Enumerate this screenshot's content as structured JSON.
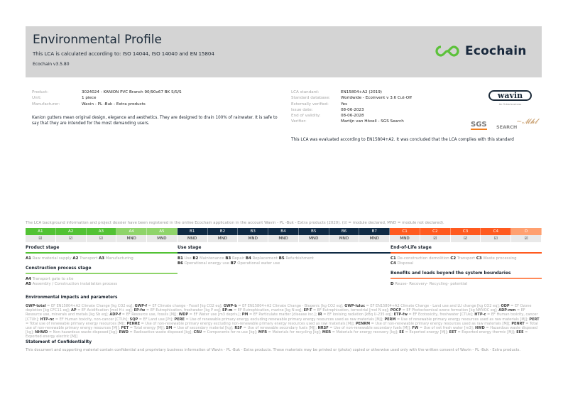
{
  "header": {
    "title": "Environmental Profile",
    "subtitle": "This LCA is calculated according to: ISO 14044, ISO 14040 and EN 15804",
    "version": "Ecochain v3.5.80",
    "logo_text": "Ecochain"
  },
  "product": [
    {
      "label": "Product:",
      "value": "3024024 - KANION PVC Branch 90/90x67 BK S/S/S"
    },
    {
      "label": "Unit:",
      "value": "1 piece"
    },
    {
      "label": "Manufacturer:",
      "value": "Wavin - PL -Buk - Extra products"
    }
  ],
  "description": "Kanion gutters mean original design, elegance and aesthetics. They are designed to drain 100% of rainwater. It is safe to say that they are intended for the most demanding users.",
  "lca": [
    {
      "label": "LCA standard:",
      "value": "EN15804+A2 (2019)"
    },
    {
      "label": "Standard database:",
      "value": "Worldwide - Ecoinvent v 3.6 Cut-Off"
    },
    {
      "label": "Externally verified:",
      "value": "Yes"
    },
    {
      "label": "Issue date:",
      "value": "08-06-2023"
    },
    {
      "label": "End of validity:",
      "value": "08-06-2028"
    },
    {
      "label": "Verifier:",
      "value": "Martijn van Hövell - SGS Search"
    }
  ],
  "verdict": "This LCA was evaluated according to EN15804+A2. It was concluded that the LCA complies with this standard",
  "logos": {
    "wavin": "wavin",
    "wavin_sub": "An Orbia business",
    "sgs": "SGS",
    "search": "SEARCH",
    "signature": "Mhl"
  },
  "notice": "The LCA background information and project dossier have been registered in the online Ecochain application in the account Wavin - PL -Buk - Extra products (2020). (☑ = module declared, MND = module not declared).",
  "colors": {
    "a_dark": "#52c234",
    "a_light": "#8fd46a",
    "b": "#0f2a44",
    "c": "#ff5a1f",
    "d": "#ffa070"
  },
  "modules": [
    {
      "code": "A1",
      "value": "☑",
      "color": "#52c234"
    },
    {
      "code": "A2",
      "value": "☑",
      "color": "#52c234"
    },
    {
      "code": "A3",
      "value": "☑",
      "color": "#52c234"
    },
    {
      "code": "A4",
      "value": "MND",
      "color": "#8fd46a"
    },
    {
      "code": "A5",
      "value": "MND",
      "color": "#8fd46a"
    },
    {
      "code": "B1",
      "value": "MND",
      "color": "#0f2a44"
    },
    {
      "code": "B2",
      "value": "MND",
      "color": "#0f2a44"
    },
    {
      "code": "B3",
      "value": "MND",
      "color": "#0f2a44"
    },
    {
      "code": "B4",
      "value": "MND",
      "color": "#0f2a44"
    },
    {
      "code": "B5",
      "value": "MND",
      "color": "#0f2a44"
    },
    {
      "code": "B6",
      "value": "MND",
      "color": "#0f2a44"
    },
    {
      "code": "B7",
      "value": "MND",
      "color": "#0f2a44"
    },
    {
      "code": "C1",
      "value": "MND",
      "color": "#ff5a1f"
    },
    {
      "code": "C2",
      "value": "☑",
      "color": "#ff5a1f"
    },
    {
      "code": "C3",
      "value": "☑",
      "color": "#ff5a1f"
    },
    {
      "code": "C4",
      "value": "☑",
      "color": "#ff5a1f"
    },
    {
      "code": "D",
      "value": "☑",
      "color": "#ffa070"
    }
  ],
  "stages": {
    "product": {
      "title": "Product stage",
      "items": [
        {
          "code": "A1",
          "label": "Raw material supply"
        },
        {
          "code": "A2",
          "label": "Transport"
        },
        {
          "code": "A3",
          "label": "Manufacturing"
        }
      ]
    },
    "construction": {
      "title": "Construction process stage",
      "items": [
        {
          "code": "A4",
          "label": "Transport gate to site"
        },
        {
          "code": "A5",
          "label": "Assembly / Construction installation process"
        }
      ]
    },
    "use": {
      "title": "Use stage",
      "items": [
        {
          "code": "B1",
          "label": "Use"
        },
        {
          "code": "B2",
          "label": "Maintenance"
        },
        {
          "code": "B3",
          "label": "Repair"
        },
        {
          "code": "B4",
          "label": "Replacement"
        },
        {
          "code": "B5",
          "label": "Refurbishment"
        },
        {
          "code": "B6",
          "label": "Operational energy use"
        },
        {
          "code": "B7",
          "label": "Operational water use"
        }
      ]
    },
    "eol": {
      "title": "End-of-Life stage",
      "items": [
        {
          "code": "C1",
          "label": "De-construction demolition"
        },
        {
          "code": "C2",
          "label": "Transport"
        },
        {
          "code": "C3",
          "label": "Waste processing"
        },
        {
          "code": "C4",
          "label": "Disposal"
        }
      ]
    },
    "beyond": {
      "title": "Benefits and loads beyond the system boundaries",
      "items": [
        {
          "code": "D",
          "label": "Reuse- Recovery- Recycling- potential"
        }
      ]
    }
  },
  "env": {
    "title": "Environmental impacts and parameters",
    "items": [
      [
        "GWP-total",
        "EF EN15804+A2 Climate Change [kg CO2 eq]"
      ],
      [
        "GWP-f",
        "EF Climate change - Fossil [kg CO2 eq]"
      ],
      [
        "GWP-b",
        "EF EN15804+A2 Climate Change - Biogenic [kg CO2 eq]"
      ],
      [
        "GWP-luluc",
        "EF EN15804+A2 Climate Change - Land use and LU change [kg CO2 eq]"
      ],
      [
        "ODP",
        "EF Ozone depletion [kg CFC11 eq]"
      ],
      [
        "AP",
        "EF Acidification [mol H+ eq]"
      ],
      [
        "EP-fw",
        "EF Eutrophication, freshwater [kg P eq]"
      ],
      [
        "EP-m",
        "EF Eutrophication, marine [kg N eq]"
      ],
      [
        "EP-T",
        "EF Eutrophication, terrestrial [mol N eq]"
      ],
      [
        "POCP",
        "EF Photochemical ozone formation [kg NMVOC eq]"
      ],
      [
        "ADP-mm",
        "EF Resource use, minerals and metals [kg Sb eq]"
      ],
      [
        "ADP-f",
        "EF Resource use, fossils [MJ]"
      ],
      [
        "WDP",
        "EF Water use [m3 depriv.]"
      ],
      [
        "PM",
        "EF Particulate matter [disease inc.]"
      ],
      [
        "IR",
        "EF Ionising radiation [kBq U-235 eq]"
      ],
      [
        "ETP-fw",
        "EF Ecotoxicity, freshwater [CTUe]"
      ],
      [
        "HTP-c",
        "EF Human toxicity, cancer [CTUh]"
      ],
      [
        "HTP-nc",
        "EF Human toxicity, non-cancer [CTUh]"
      ],
      [
        "SQP",
        "EF Land use [Pt]"
      ],
      [
        "PERE",
        "Use of renewable primary energy excluding renewable primary energy resources used as raw materials [MJ]"
      ],
      [
        "PERM",
        "Use of renewable primary energy resources used as raw materials [MJ]"
      ],
      [
        "PERT",
        "Total use of renewable primary energy resources [MJ]"
      ],
      [
        "PENRE",
        "Use of non-renewable primary energy excluding non-renewable primary energy resources used as raw materials [MJ]"
      ],
      [
        "PENRM",
        "Use of non-renewable primary energy resources used as raw materials [MJ]"
      ],
      [
        "PENRT",
        "Total use of non-renewable primary energy resources [MJ]"
      ],
      [
        "PET",
        "Total energy [MJ]"
      ],
      [
        "SM",
        "Use of secondary material [kg]"
      ],
      [
        "RSF",
        "Use of renewable secondary fuels [MJ]"
      ],
      [
        "NRSF",
        "Use of non-renewable secondary fuels [MJ]"
      ],
      [
        "FW",
        "Use of net fresh water [m3]"
      ],
      [
        "HWD",
        "Hazardous waste disposed [kg]"
      ],
      [
        "NHWD",
        "Non-hazardous waste disposed [kg]"
      ],
      [
        "RWD",
        "Radioactive waste disposed [kg]"
      ],
      [
        "CRU",
        "Components for re-use [kg]"
      ],
      [
        "MFR",
        "Materials for recycling [kg]"
      ],
      [
        "MER",
        "Materials for energy recovery [kg]"
      ],
      [
        "EE",
        "Exported energy [MJ]"
      ],
      [
        "EET",
        "Exported energy thermic [MJ]"
      ],
      [
        "EEE",
        "Exported energy electric [MJ]"
      ]
    ]
  },
  "confidentiality": {
    "title": "Statement of Confidentiality",
    "text": "This document and supporting material contain confidential and proprietary business information of Wavin - PL -Buk - Extra products. These materials may be printed or (photo) copied or otherwise used only with the written consent of Wavin - PL -Buk - Extra products."
  }
}
